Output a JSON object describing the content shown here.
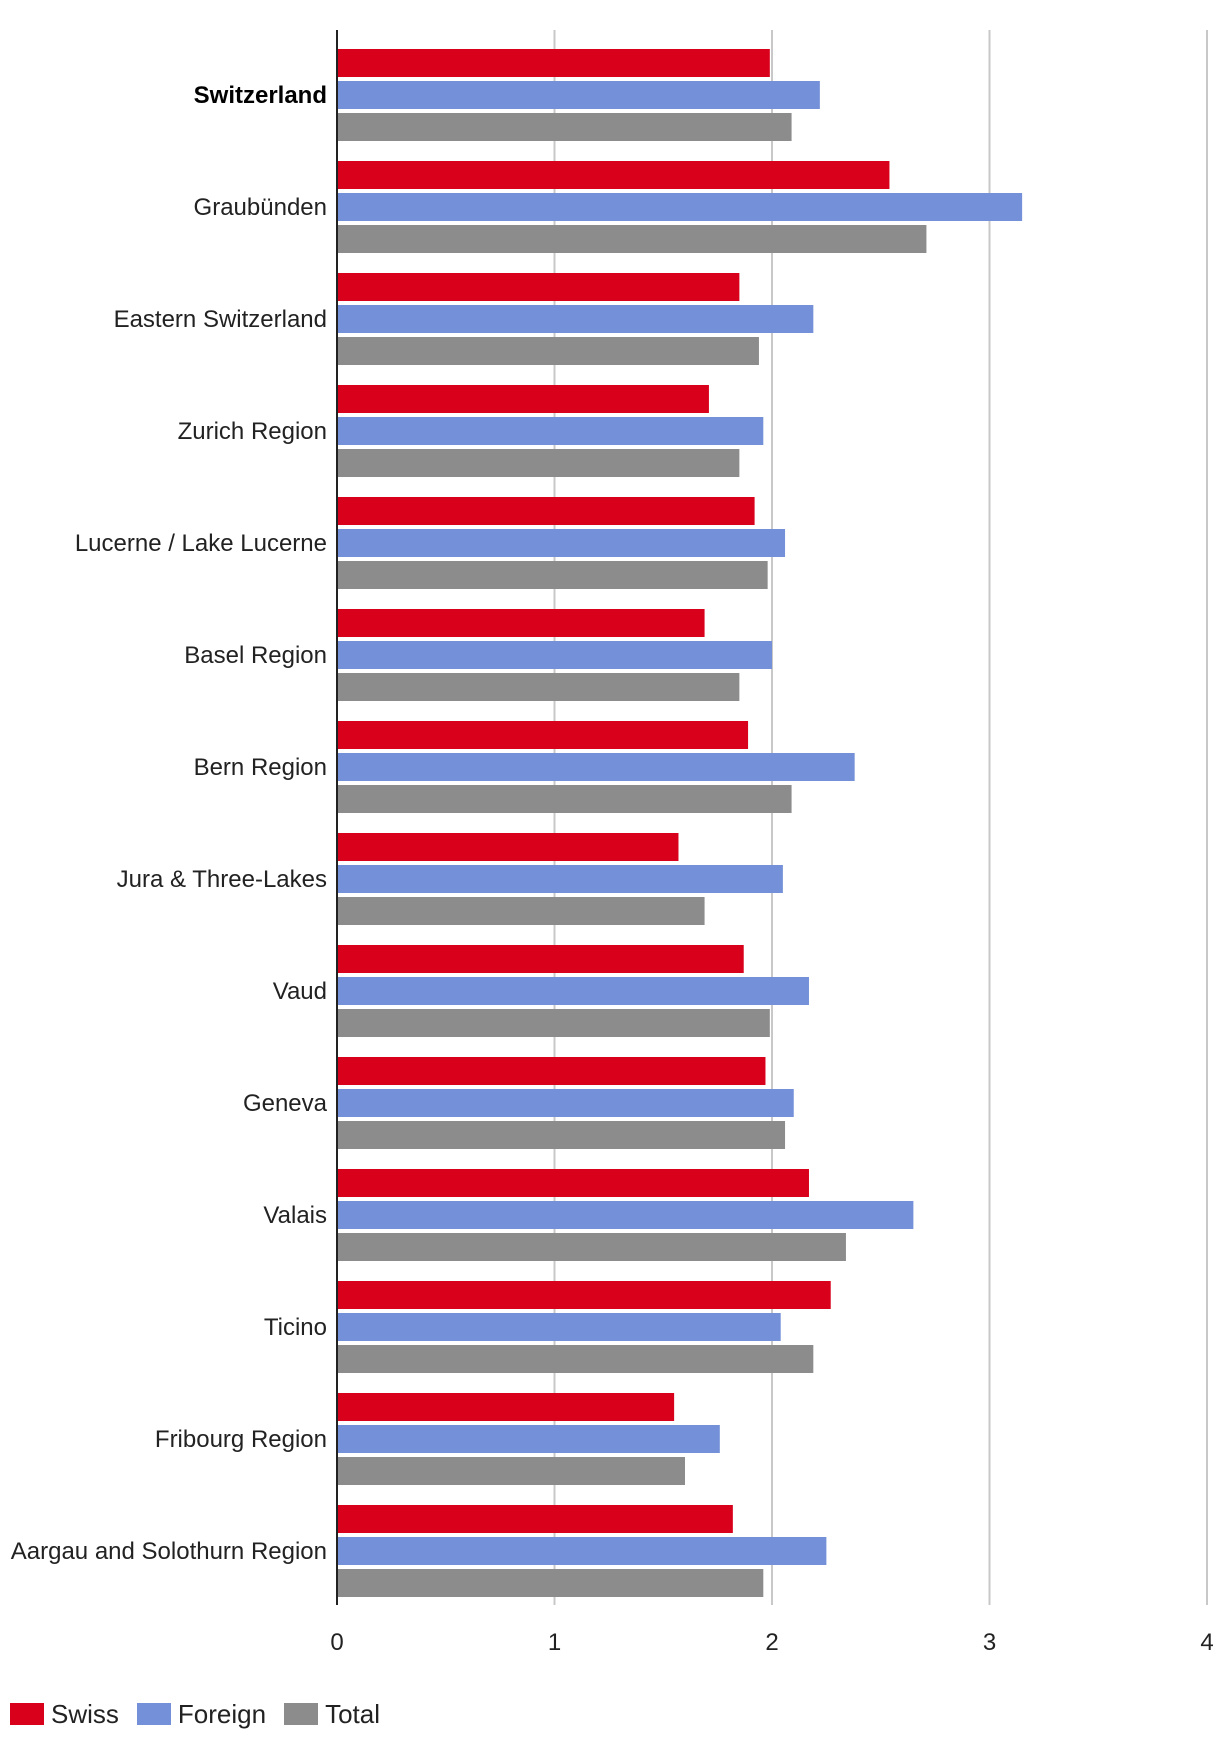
{
  "chart_data": {
    "type": "bar",
    "orientation": "horizontal",
    "title": "",
    "xlabel": "",
    "ylabel": "",
    "xlim": [
      0,
      4
    ],
    "x_ticks": [
      "0",
      "1",
      "2",
      "3",
      "4"
    ],
    "grid": true,
    "legend_position": "bottom-left",
    "highlight_category": "Switzerland",
    "categories": [
      "Switzerland",
      "Graubünden",
      "Eastern Switzerland",
      "Zurich Region",
      "Lucerne / Lake Lucerne",
      "Basel Region",
      "Bern Region",
      "Jura & Three-Lakes",
      "Vaud",
      "Geneva",
      "Valais",
      "Ticino",
      "Fribourg Region",
      "Aargau and Solothurn Region"
    ],
    "series": [
      {
        "name": "Swiss",
        "color": "#d9001b",
        "values": [
          1.99,
          2.54,
          1.85,
          1.71,
          1.92,
          1.69,
          1.89,
          1.57,
          1.87,
          1.97,
          2.17,
          2.27,
          1.55,
          1.82
        ]
      },
      {
        "name": "Foreign",
        "color": "#7390d8",
        "values": [
          2.22,
          3.15,
          2.19,
          1.96,
          2.06,
          2.0,
          2.38,
          2.05,
          2.17,
          2.1,
          2.65,
          2.04,
          1.76,
          2.25
        ]
      },
      {
        "name": "Total",
        "color": "#8c8c8c",
        "values": [
          2.09,
          2.71,
          1.94,
          1.85,
          1.98,
          1.85,
          2.09,
          1.69,
          1.99,
          2.06,
          2.34,
          2.19,
          1.6,
          1.96
        ]
      }
    ]
  }
}
